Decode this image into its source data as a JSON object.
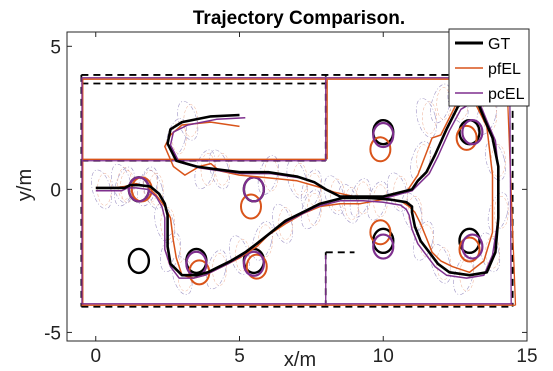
{
  "chart_data": {
    "type": "line",
    "title": "Trajectory Comparison.",
    "xlabel": "x/m",
    "ylabel": "y/m",
    "xlim": [
      -1,
      15
    ],
    "ylim": [
      -5.3,
      5.5
    ],
    "xticks": [
      0,
      5,
      10,
      15
    ],
    "xtick_labels": [
      "0",
      "5",
      "10",
      "15"
    ],
    "yticks": [
      -5,
      0,
      5
    ],
    "ytick_labels": [
      "-5",
      "0",
      "5"
    ],
    "grid": false,
    "legend_position": "top-right",
    "colors": {
      "GT": "#000000",
      "pfEL": "#D9541A",
      "pcEL": "#7E2F8E"
    },
    "series": [
      {
        "name": "GT",
        "color": "#000000",
        "x": [
          5.0,
          4.0,
          3.0,
          2.6,
          2.5,
          2.8,
          3.5,
          4.2,
          5.0,
          6.0,
          7.0,
          7.6,
          8.0,
          8.5,
          9.0,
          10.0,
          11.0,
          11.2,
          11.5,
          11.8,
          12.2,
          12.6,
          13.1,
          13.3,
          13.5,
          13.8,
          14.0,
          14.0,
          13.9,
          13.6,
          13.0,
          12.3,
          11.9,
          11.6,
          11.3,
          11.1,
          11.0,
          11.0,
          10.8,
          10.2,
          9.5,
          8.6,
          7.8,
          7.2,
          6.6,
          6.1,
          5.6,
          5.2,
          4.7,
          4.3,
          3.9,
          3.5,
          3.0,
          2.6,
          2.5,
          2.5,
          2.5,
          2.4,
          2.2,
          1.9,
          1.5,
          1.2,
          1.0,
          0.8,
          0.4,
          0.0
        ],
        "y": [
          2.6,
          2.55,
          2.35,
          2.1,
          1.6,
          1.0,
          0.8,
          0.7,
          0.6,
          0.6,
          0.45,
          0.25,
          0.0,
          -0.25,
          -0.25,
          -0.25,
          0.0,
          0.3,
          0.6,
          1.2,
          2.1,
          2.9,
          3.2,
          3.0,
          2.5,
          1.8,
          0.8,
          -1.0,
          -2.2,
          -2.9,
          -3.0,
          -2.9,
          -2.6,
          -2.2,
          -1.8,
          -1.3,
          -0.8,
          -0.6,
          -0.45,
          -0.35,
          -0.3,
          -0.3,
          -0.5,
          -0.8,
          -1.1,
          -1.5,
          -1.9,
          -2.2,
          -2.5,
          -2.7,
          -2.9,
          -3.0,
          -3.0,
          -2.6,
          -2.0,
          -1.5,
          -0.9,
          -0.5,
          -0.15,
          0.1,
          0.15,
          0.15,
          0.05,
          0.05,
          0.05,
          0.05
        ]
      },
      {
        "name": "pfEL",
        "color": "#D9541A",
        "x": [
          5.0,
          4.0,
          3.0,
          2.6,
          2.4,
          2.7,
          3.1,
          3.6,
          4.0,
          4.3,
          5.0,
          6.0,
          7.0,
          7.7,
          8.3,
          9.2,
          10.0,
          10.8,
          11.2,
          11.7,
          12.0,
          12.5,
          13.0,
          13.2,
          13.6,
          13.8,
          13.8,
          13.5,
          13.0,
          12.4,
          12.0,
          11.7,
          11.5,
          11.3,
          11.1,
          10.9,
          10.6,
          10.0,
          9.2,
          8.5,
          7.8,
          7.2,
          6.6,
          6.0,
          5.6,
          5.0,
          4.6,
          4.2,
          3.8,
          3.4,
          3.0,
          2.8,
          2.7,
          2.6,
          2.4,
          2.1,
          1.8,
          1.4,
          1.0,
          0.6,
          0.2,
          0.0
        ],
        "y": [
          2.2,
          2.35,
          2.25,
          1.9,
          1.5,
          0.8,
          0.5,
          0.8,
          0.9,
          0.65,
          0.5,
          0.4,
          0.3,
          0.1,
          -0.1,
          -0.3,
          -0.3,
          -0.1,
          0.5,
          1.8,
          1.9,
          2.9,
          3.1,
          3.0,
          2.2,
          0.5,
          -1.5,
          -2.5,
          -2.9,
          -2.7,
          -2.5,
          -2.2,
          -1.7,
          -1.2,
          -0.8,
          -0.6,
          -0.4,
          -0.35,
          -0.5,
          -0.5,
          -0.6,
          -0.85,
          -1.2,
          -1.6,
          -2.0,
          -2.4,
          -2.6,
          -2.8,
          -3.0,
          -3.1,
          -3.0,
          -2.4,
          -1.8,
          -1.0,
          -0.6,
          -0.2,
          0.1,
          0.2,
          0.1,
          0.05,
          0.05,
          0.05
        ]
      },
      {
        "name": "pcEL",
        "color": "#7E2F8E",
        "x": [
          5.2,
          4.2,
          3.2,
          2.7,
          2.6,
          2.9,
          3.6,
          4.3,
          5.1,
          6.1,
          7.1,
          7.7,
          8.1,
          8.6,
          9.1,
          10.1,
          11.0,
          11.3,
          11.6,
          11.9,
          12.3,
          12.7,
          13.2,
          13.4,
          13.6,
          13.9,
          14.0,
          14.0,
          13.8,
          13.5,
          12.9,
          12.2,
          11.8,
          11.5,
          11.2,
          11.0,
          10.9,
          10.8,
          10.6,
          10.0,
          9.3,
          8.5,
          7.7,
          7.1,
          6.5,
          6.0,
          5.5,
          5.1,
          4.6,
          4.2,
          3.8,
          3.4,
          2.9,
          2.6,
          2.4,
          2.4,
          2.4,
          2.3,
          2.1,
          1.8,
          1.4,
          1.1,
          0.9,
          0.7,
          0.3,
          0.0
        ],
        "y": [
          2.5,
          2.45,
          2.25,
          2.0,
          1.55,
          0.95,
          0.75,
          0.65,
          0.55,
          0.55,
          0.4,
          0.2,
          -0.05,
          -0.3,
          -0.3,
          -0.3,
          -0.05,
          0.25,
          0.55,
          1.15,
          2.05,
          2.8,
          3.1,
          2.9,
          2.4,
          1.7,
          0.7,
          -1.0,
          -2.3,
          -3.0,
          -3.1,
          -3.0,
          -2.7,
          -2.3,
          -1.9,
          -1.4,
          -0.9,
          -0.7,
          -0.55,
          -0.45,
          -0.4,
          -0.4,
          -0.6,
          -0.9,
          -1.2,
          -1.6,
          -2.0,
          -2.3,
          -2.6,
          -2.8,
          -3.0,
          -3.1,
          -3.1,
          -2.7,
          -2.1,
          -1.6,
          -1.0,
          -0.6,
          -0.25,
          0.0,
          0.05,
          0.05,
          -0.05,
          -0.05,
          -0.05,
          -0.05
        ]
      }
    ],
    "walls": {
      "GT": [
        [
          [
            -0.5,
            4.0
          ],
          [
            14.5,
            4.0
          ]
        ],
        [
          [
            -0.5,
            -4.1
          ],
          [
            14.5,
            -4.1
          ]
        ],
        [
          [
            -0.5,
            4.0
          ],
          [
            -0.5,
            -4.1
          ]
        ],
        [
          [
            14.5,
            4.0
          ],
          [
            14.5,
            -4.1
          ]
        ],
        [
          [
            -0.5,
            1.0
          ],
          [
            8.0,
            1.0
          ]
        ],
        [
          [
            8.0,
            1.0
          ],
          [
            8.0,
            4.0
          ]
        ],
        [
          [
            8.0,
            -2.2
          ],
          [
            8.0,
            -4.1
          ]
        ],
        [
          [
            8.0,
            -2.2
          ],
          [
            9.0,
            -2.2
          ]
        ],
        [
          [
            -0.5,
            3.7
          ],
          [
            8.0,
            3.7
          ]
        ]
      ],
      "pfEL": [
        [
          [
            -0.5,
            3.85
          ],
          [
            14.3,
            3.85
          ]
        ],
        [
          [
            -0.5,
            -4.05
          ],
          [
            14.6,
            -4.05
          ]
        ],
        [
          [
            -0.45,
            3.85
          ],
          [
            -0.45,
            -4.05
          ]
        ],
        [
          [
            14.3,
            3.85
          ],
          [
            14.6,
            -4.05
          ]
        ],
        [
          [
            -0.5,
            1.05
          ],
          [
            8.0,
            1.05
          ]
        ],
        [
          [
            8.05,
            1.05
          ],
          [
            8.05,
            3.85
          ]
        ]
      ],
      "pcEL": [
        [
          [
            -0.5,
            3.9
          ],
          [
            14.4,
            3.9
          ]
        ],
        [
          [
            -0.5,
            -4.0
          ],
          [
            14.5,
            -4.0
          ]
        ],
        [
          [
            -0.48,
            3.9
          ],
          [
            -0.48,
            -4.0
          ]
        ],
        [
          [
            14.4,
            3.9
          ],
          [
            14.45,
            -4.0
          ]
        ],
        [
          [
            -0.5,
            1.0
          ],
          [
            8.0,
            1.0
          ]
        ],
        [
          [
            8.0,
            1.0
          ],
          [
            8.0,
            3.9
          ]
        ],
        [
          [
            8.0,
            -2.3
          ],
          [
            8.0,
            -4.0
          ]
        ]
      ]
    },
    "landmarks": {
      "GT": [
        [
          1.5,
          0.0
        ],
        [
          5.5,
          0.0
        ],
        [
          1.5,
          -2.5
        ],
        [
          3.5,
          -2.5
        ],
        [
          5.5,
          -2.5
        ],
        [
          10.0,
          2.0
        ],
        [
          13.0,
          2.0
        ],
        [
          10.0,
          -1.8
        ],
        [
          13.0,
          -1.8
        ]
      ],
      "pfEL": [
        [
          1.6,
          0.0
        ],
        [
          5.4,
          -0.6
        ],
        [
          3.6,
          -2.9
        ],
        [
          5.6,
          -2.7
        ],
        [
          9.9,
          1.4
        ],
        [
          12.9,
          1.8
        ],
        [
          9.9,
          -1.5
        ],
        [
          13.0,
          -2.1
        ]
      ],
      "pcEL": [
        [
          1.5,
          0.0
        ],
        [
          5.5,
          0.0
        ],
        [
          3.5,
          -2.6
        ],
        [
          5.5,
          -2.6
        ],
        [
          10.0,
          1.9
        ],
        [
          13.1,
          2.0
        ],
        [
          10.0,
          -2.0
        ],
        [
          13.1,
          -2.0
        ]
      ]
    },
    "uncertainty_ellipses": [
      [
        0.2,
        0.0
      ],
      [
        1.0,
        0.1
      ],
      [
        2.0,
        0.0
      ],
      [
        2.8,
        1.8
      ],
      [
        3.2,
        2.4
      ],
      [
        3.8,
        0.7
      ],
      [
        4.3,
        0.7
      ],
      [
        6.0,
        0.5
      ],
      [
        7.0,
        0.35
      ],
      [
        7.5,
        0.0
      ],
      [
        8.3,
        -0.2
      ],
      [
        9.2,
        -0.3
      ],
      [
        10.5,
        -0.1
      ],
      [
        11.3,
        1.0
      ],
      [
        11.5,
        2.5
      ],
      [
        12.0,
        3.0
      ],
      [
        12.6,
        3.0
      ],
      [
        13.6,
        2.6
      ],
      [
        13.9,
        1.0
      ],
      [
        14.0,
        -0.8
      ],
      [
        13.7,
        -2.2
      ],
      [
        12.8,
        -3.0
      ],
      [
        12.0,
        -2.6
      ],
      [
        11.4,
        -1.8
      ],
      [
        11.0,
        -0.8
      ],
      [
        9.8,
        -0.4
      ],
      [
        8.8,
        -0.5
      ],
      [
        7.5,
        -0.7
      ],
      [
        6.5,
        -1.2
      ],
      [
        5.8,
        -1.8
      ],
      [
        5.0,
        -2.3
      ],
      [
        4.2,
        -2.8
      ],
      [
        3.0,
        -3.0
      ],
      [
        2.6,
        -2.2
      ],
      [
        2.4,
        -1.2
      ],
      [
        1.8,
        0.1
      ],
      [
        0.9,
        0.2
      ]
    ]
  }
}
